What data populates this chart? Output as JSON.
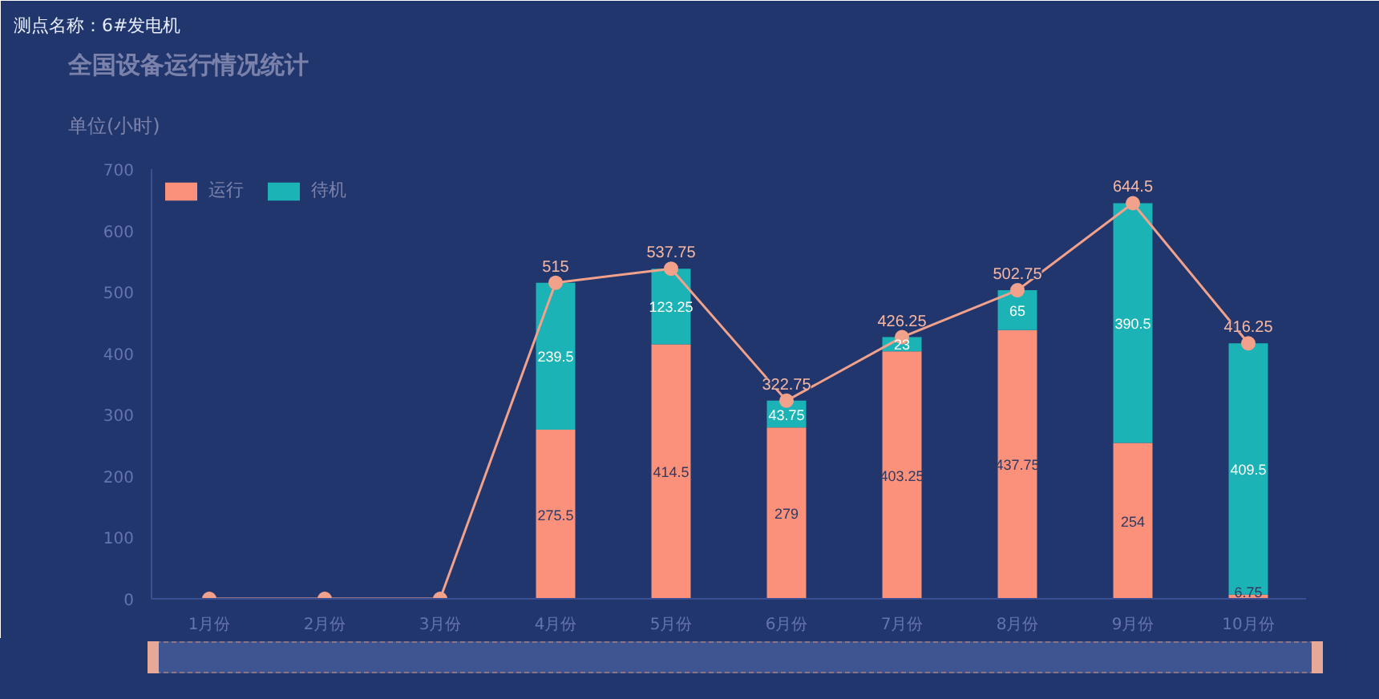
{
  "chart_data": {
    "type": "bar",
    "title": "全国设备运行情况统计",
    "subtitle": "单位(小时)",
    "annotations": [
      "测点名称：6#发电机"
    ],
    "categories": [
      "1月份",
      "2月份",
      "3月份",
      "4月份",
      "5月份",
      "6月份",
      "7月份",
      "8月份",
      "9月份",
      "10月份"
    ],
    "stacked": true,
    "ylim": [
      0,
      700
    ],
    "yticks": [
      0,
      100,
      200,
      300,
      400,
      500,
      600,
      700
    ],
    "grid": false,
    "legend": "top left",
    "series": [
      {
        "name": "运行",
        "color": "#fb917b",
        "values": [
          null,
          null,
          null,
          275.5,
          414.5,
          279,
          403.25,
          437.75,
          254,
          6.75
        ],
        "value_labels": [
          null,
          null,
          null,
          "275.5",
          "414.5",
          "279",
          "403.25",
          "437.75",
          "254",
          "6.75"
        ]
      },
      {
        "name": "待机",
        "color": "#1bb3b6",
        "values": [
          null,
          null,
          null,
          239.5,
          123.25,
          43.75,
          23,
          65,
          390.5,
          409.5
        ],
        "value_labels": [
          null,
          null,
          null,
          "239.5",
          "123.25",
          "43.75",
          "23",
          "65",
          "390.5",
          "409.5"
        ]
      },
      {
        "type": "line",
        "color": "#f2a18b",
        "marker": "circle",
        "values": [
          0,
          0,
          0,
          515,
          537.75,
          322.75,
          426.25,
          502.75,
          644.5,
          416.25
        ],
        "value_labels": [
          null,
          null,
          null,
          "515",
          "537.75",
          "322.75",
          "426.25",
          "502.75",
          "644.5",
          "416.25"
        ]
      }
    ]
  }
}
